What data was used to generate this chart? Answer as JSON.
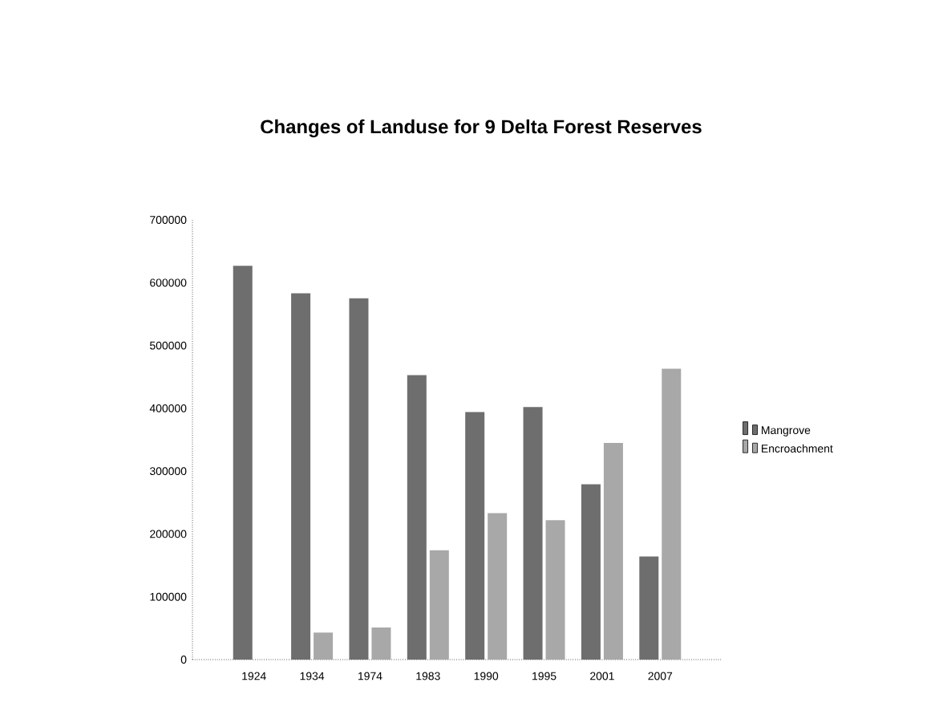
{
  "chart_data": {
    "type": "bar",
    "title": "Changes of Landuse for 9 Delta Forest Reserves",
    "categories": [
      "1924",
      "1934",
      "1974",
      "1983",
      "1990",
      "1995",
      "2001",
      "2007"
    ],
    "series": [
      {
        "name": "Mangrove",
        "color": "#6e6e6e",
        "values": [
          627000,
          583000,
          575000,
          453000,
          394000,
          402000,
          279000,
          164000
        ]
      },
      {
        "name": "Encroachment",
        "color": "#a8a8a8",
        "values": [
          0,
          43000,
          51000,
          174000,
          233000,
          222000,
          345000,
          463000
        ]
      }
    ],
    "ylim": [
      0,
      700000
    ],
    "yticks": [
      0,
      100000,
      200000,
      300000,
      400000,
      500000,
      600000,
      700000
    ],
    "grid": false,
    "legend": "right"
  }
}
